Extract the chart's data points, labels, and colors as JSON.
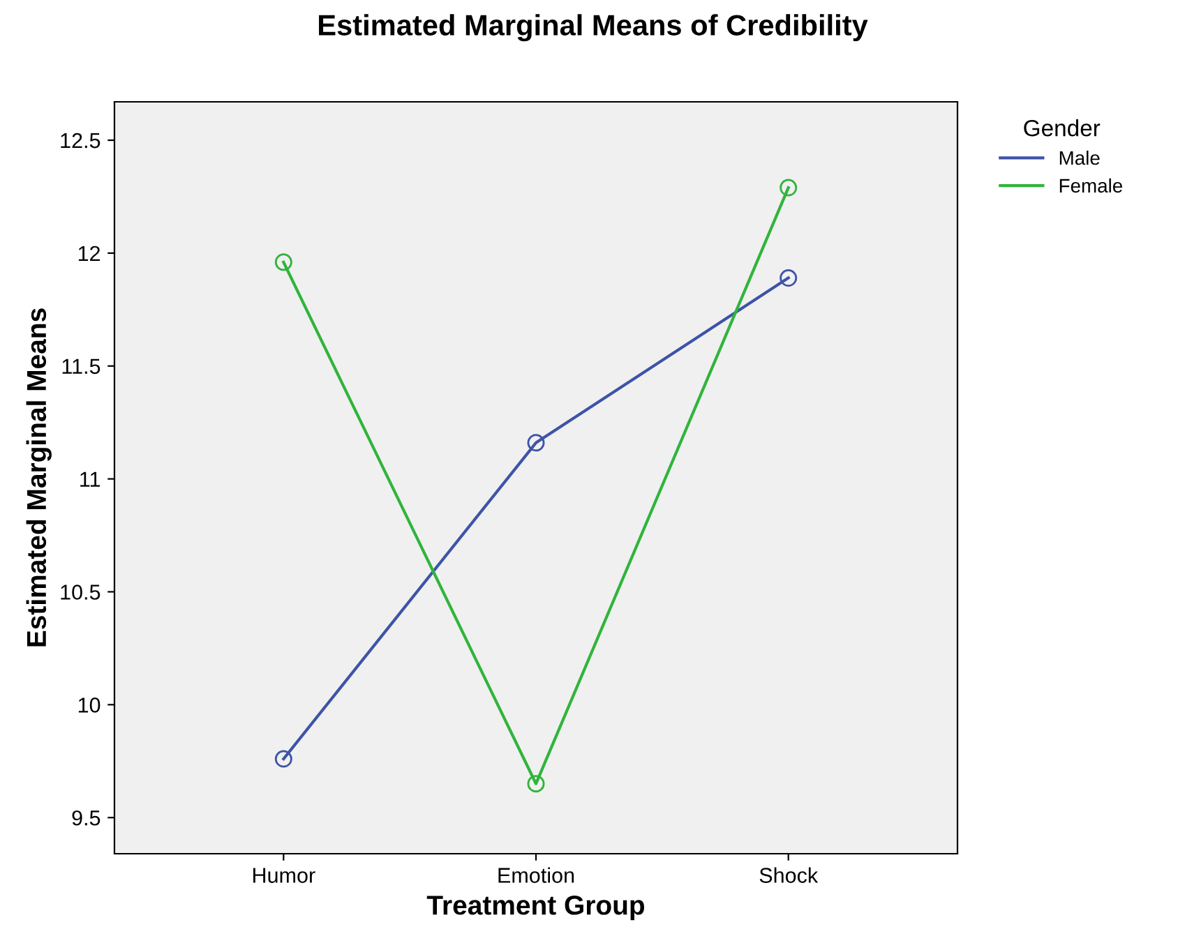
{
  "chart_data": {
    "type": "line",
    "title": "Estimated Marginal Means of Credibility",
    "xlabel": "Treatment Group",
    "ylabel": "Estimated Marginal Means",
    "legend_title": "Gender",
    "categories": [
      "Humor",
      "Emotion",
      "Shock"
    ],
    "series": [
      {
        "name": "Male",
        "color": "#3e53a8",
        "values": [
          9.76,
          11.16,
          11.89
        ]
      },
      {
        "name": "Female",
        "color": "#30b43c",
        "values": [
          11.96,
          9.65,
          12.29
        ]
      }
    ],
    "ylim": [
      9.34,
      12.67
    ],
    "yticks": [
      9.5,
      10,
      10.5,
      11,
      11.5,
      12,
      12.5
    ],
    "grid": false,
    "legend": "right",
    "marker": "circle",
    "line_style": "solid"
  }
}
